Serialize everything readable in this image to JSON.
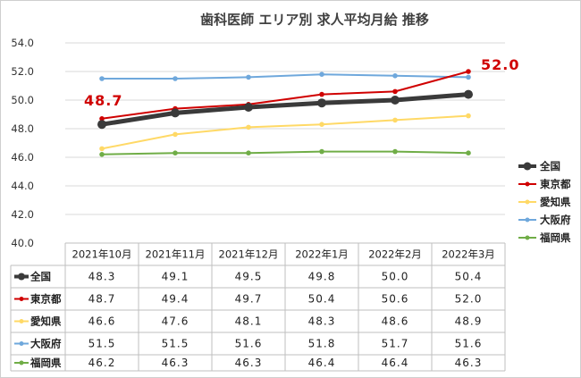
{
  "chart_data": {
    "type": "line",
    "title": "歯科医師 エリア別 求人平均月給 推移",
    "categories": [
      "2021年10月",
      "2021年11月",
      "2021年12月",
      "2022年1月",
      "2022年2月",
      "2022年3月"
    ],
    "ylim": [
      40.0,
      54.0
    ],
    "ytick_step": 2.0,
    "yticks": [
      "40.0",
      "42.0",
      "44.0",
      "46.0",
      "48.0",
      "50.0",
      "52.0",
      "54.0"
    ],
    "grid": true,
    "legend_position": "right",
    "series": [
      {
        "name": "全国",
        "color": "#3a3a3a",
        "thick": true,
        "values": [
          "48.3",
          "49.1",
          "49.5",
          "49.8",
          "50.0",
          "50.4"
        ]
      },
      {
        "name": "東京都",
        "color": "#d00000",
        "thick": false,
        "values": [
          "48.7",
          "49.4",
          "49.7",
          "50.4",
          "50.6",
          "52.0"
        ]
      },
      {
        "name": "愛知県",
        "color": "#ffd966",
        "thick": false,
        "values": [
          "46.6",
          "47.6",
          "48.1",
          "48.3",
          "48.6",
          "48.9"
        ]
      },
      {
        "name": "大阪府",
        "color": "#6fa8dc",
        "thick": false,
        "values": [
          "51.5",
          "51.5",
          "51.6",
          "51.8",
          "51.7",
          "51.6"
        ]
      },
      {
        "name": "福岡県",
        "color": "#70ad47",
        "thick": false,
        "values": [
          "46.2",
          "46.3",
          "46.3",
          "46.4",
          "46.4",
          "46.3"
        ]
      }
    ],
    "annotations": [
      {
        "series": "東京都",
        "index": 0,
        "text": "48.7"
      },
      {
        "series": "東京都",
        "index": 5,
        "text": "52.0"
      }
    ]
  }
}
